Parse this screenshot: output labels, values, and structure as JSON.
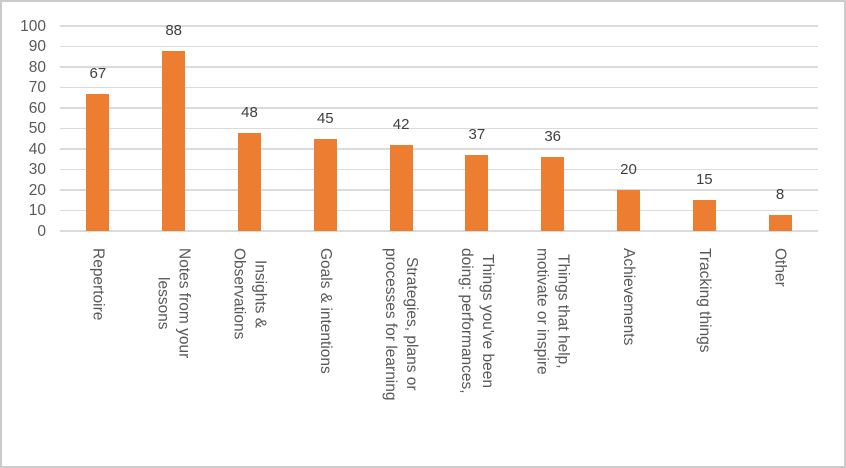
{
  "chart_data": {
    "type": "bar",
    "categories": [
      "Repertoire",
      "Notes from your\nlessons",
      "Insights &\nObservations",
      "Goals & intentions",
      "Strategies, plans or\nprocesses for learning",
      "Things you've been\ndoing: performances,",
      "Things that help,\nmotivate or inspire",
      "Achievements",
      "Tracking things",
      "Other"
    ],
    "values": [
      67,
      88,
      48,
      45,
      42,
      37,
      36,
      20,
      15,
      8
    ],
    "yticks": [
      0,
      10,
      20,
      30,
      40,
      50,
      60,
      70,
      80,
      90,
      100
    ],
    "ylim": [
      0,
      100
    ],
    "grid": true,
    "legend": "none",
    "bar_color": "#ED7D31"
  },
  "colors": {
    "bar": "#ED7D31",
    "gridline": "#DBDBDB",
    "tick_label": "#595959",
    "category_label": "#595959",
    "value_label": "#404040",
    "border": "#CBCBCB",
    "background": "#FFFFFF"
  }
}
